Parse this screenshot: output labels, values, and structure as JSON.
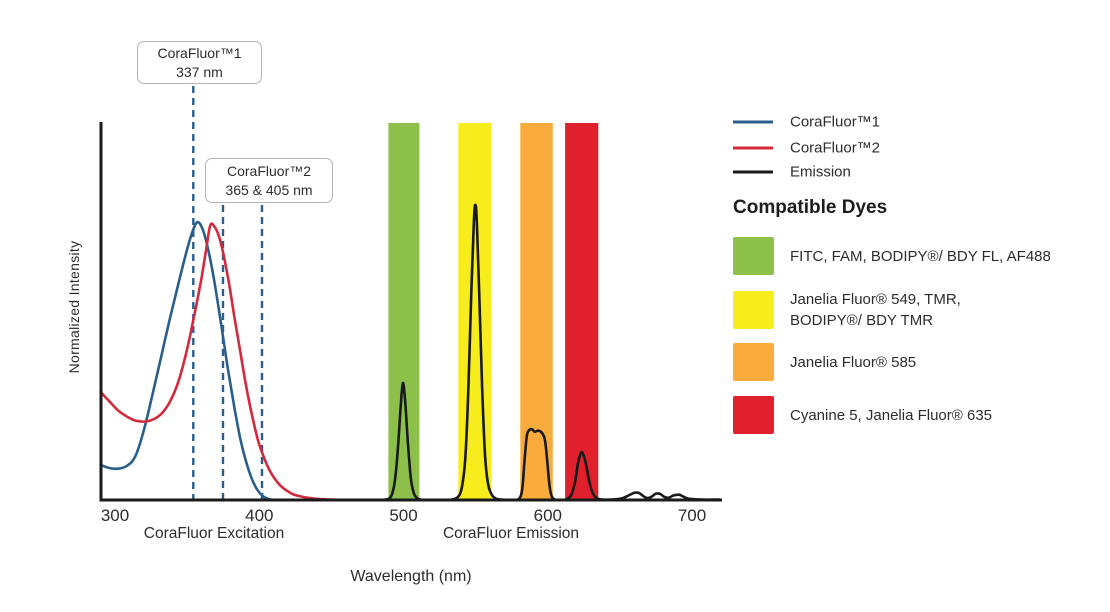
{
  "colors": {
    "blue": "#2A5F8C",
    "red": "#D4293C",
    "black": "#1A1A1A",
    "band_green": "#8CC04B",
    "band_yellow": "#F8ED1C",
    "band_orange": "#F9AC3C",
    "band_red": "#E1202D",
    "text": "#2D2D2D",
    "box_border": "#B3B3B6"
  },
  "chart_data": {
    "type": "line",
    "title": "",
    "xlabel": "Wavelength (nm)",
    "ylabel": "Normalized Intensity",
    "x_ticks": [
      300,
      400,
      500,
      600,
      700
    ],
    "x_range_nm": [
      290,
      719
    ],
    "y_range": [
      0,
      1
    ],
    "grid": false,
    "legend_position": "right",
    "axis_section_labels": [
      {
        "label": "CoraFluor Excitation"
      },
      {
        "label": "CoraFluor Emission"
      }
    ],
    "annotations": [
      {
        "title": "CoraFluor™1",
        "subtitle": "337 nm",
        "marker_lines_nm": [
          354.3
        ]
      },
      {
        "title": "CoraFluor™2",
        "subtitle": "365 & 405 nm",
        "marker_lines_nm": [
          374.9,
          401.9
        ]
      }
    ],
    "bands": [
      {
        "name": "green",
        "from_nm": 489.5,
        "to_nm": 511,
        "color_key": "band_green"
      },
      {
        "name": "yellow",
        "from_nm": 538,
        "to_nm": 561,
        "color_key": "band_yellow"
      },
      {
        "name": "orange",
        "from_nm": 581,
        "to_nm": 603.5,
        "color_key": "band_orange"
      },
      {
        "name": "red",
        "from_nm": 612,
        "to_nm": 635,
        "color_key": "band_red"
      }
    ],
    "series": [
      {
        "name": "CoraFluor™1",
        "color_key": "blue",
        "points": [
          [
            290,
            0.093
          ],
          [
            296,
            0.085
          ],
          [
            302,
            0.083
          ],
          [
            308,
            0.09
          ],
          [
            314,
            0.115
          ],
          [
            320,
            0.185
          ],
          [
            326,
            0.28
          ],
          [
            332,
            0.38
          ],
          [
            338,
            0.48
          ],
          [
            344,
            0.575
          ],
          [
            350,
            0.665
          ],
          [
            354,
            0.715
          ],
          [
            357,
            0.737
          ],
          [
            360,
            0.725
          ],
          [
            363,
            0.69
          ],
          [
            367,
            0.62
          ],
          [
            371,
            0.53
          ],
          [
            375,
            0.43
          ],
          [
            379,
            0.33
          ],
          [
            383,
            0.24
          ],
          [
            387,
            0.16
          ],
          [
            391,
            0.1
          ],
          [
            395,
            0.055
          ],
          [
            399,
            0.025
          ],
          [
            403,
            0.009
          ],
          [
            407,
            0.002
          ],
          [
            411,
            0
          ]
        ]
      },
      {
        "name": "CoraFluor™2",
        "color_key": "red",
        "points": [
          [
            290,
            0.287
          ],
          [
            296,
            0.262
          ],
          [
            302,
            0.238
          ],
          [
            308,
            0.222
          ],
          [
            314,
            0.211
          ],
          [
            320,
            0.208
          ],
          [
            326,
            0.213
          ],
          [
            332,
            0.228
          ],
          [
            338,
            0.26
          ],
          [
            344,
            0.315
          ],
          [
            350,
            0.4
          ],
          [
            356,
            0.51
          ],
          [
            360,
            0.59
          ],
          [
            363,
            0.66
          ],
          [
            366,
            0.728
          ],
          [
            369,
            0.725
          ],
          [
            372,
            0.7
          ],
          [
            375,
            0.655
          ],
          [
            379,
            0.575
          ],
          [
            383,
            0.48
          ],
          [
            387,
            0.39
          ],
          [
            391,
            0.3
          ],
          [
            395,
            0.225
          ],
          [
            399,
            0.16
          ],
          [
            403,
            0.115
          ],
          [
            407,
            0.08
          ],
          [
            411,
            0.055
          ],
          [
            415,
            0.037
          ],
          [
            419,
            0.025
          ],
          [
            423,
            0.016
          ],
          [
            427,
            0.011
          ],
          [
            432,
            0.007
          ],
          [
            438,
            0.004
          ],
          [
            444,
            0.002
          ],
          [
            450,
            0.001
          ],
          [
            457,
            0
          ]
        ]
      },
      {
        "name": "Emission",
        "color_key": "black",
        "points": [
          [
            440,
            0
          ],
          [
            455,
            0
          ],
          [
            470,
            0
          ],
          [
            482,
            0
          ],
          [
            487,
            0.001
          ],
          [
            490,
            0.004
          ],
          [
            492,
            0.015
          ],
          [
            494,
            0.05
          ],
          [
            496,
            0.13
          ],
          [
            498,
            0.245
          ],
          [
            499.5,
            0.31
          ],
          [
            501,
            0.27
          ],
          [
            503,
            0.155
          ],
          [
            505,
            0.06
          ],
          [
            507,
            0.02
          ],
          [
            509,
            0.006
          ],
          [
            512,
            0.001
          ],
          [
            517,
            0
          ],
          [
            524,
            0
          ],
          [
            531,
            0
          ],
          [
            536,
            0.004
          ],
          [
            539,
            0.015
          ],
          [
            541,
            0.045
          ],
          [
            543,
            0.12
          ],
          [
            545,
            0.3
          ],
          [
            547,
            0.55
          ],
          [
            548.8,
            0.74
          ],
          [
            549.8,
            0.783
          ],
          [
            550.8,
            0.74
          ],
          [
            552.5,
            0.55
          ],
          [
            554.5,
            0.3
          ],
          [
            556.5,
            0.12
          ],
          [
            558.5,
            0.045
          ],
          [
            561,
            0.015
          ],
          [
            564,
            0.004
          ],
          [
            568,
            0.001
          ],
          [
            573,
            0
          ],
          [
            578,
            0
          ],
          [
            581,
            0.008
          ],
          [
            582.5,
            0.035
          ],
          [
            584,
            0.11
          ],
          [
            585.5,
            0.17
          ],
          [
            587,
            0.185
          ],
          [
            589,
            0.188
          ],
          [
            591,
            0.181
          ],
          [
            593.5,
            0.184
          ],
          [
            596,
            0.178
          ],
          [
            598,
            0.16
          ],
          [
            599.5,
            0.11
          ],
          [
            601,
            0.045
          ],
          [
            602.5,
            0.012
          ],
          [
            604.5,
            0.002
          ],
          [
            607.5,
            0
          ],
          [
            611,
            0
          ],
          [
            614,
            0.004
          ],
          [
            616.5,
            0.015
          ],
          [
            619,
            0.05
          ],
          [
            621,
            0.098
          ],
          [
            623,
            0.125
          ],
          [
            624.5,
            0.122
          ],
          [
            626.5,
            0.095
          ],
          [
            628.5,
            0.055
          ],
          [
            630.5,
            0.025
          ],
          [
            632.5,
            0.01
          ],
          [
            635,
            0.003
          ],
          [
            638,
            0.001
          ],
          [
            643,
            0.001
          ],
          [
            648,
            0.002
          ],
          [
            652,
            0.005
          ],
          [
            656,
            0.012
          ],
          [
            660,
            0.019
          ],
          [
            663,
            0.019
          ],
          [
            666,
            0.011
          ],
          [
            669,
            0.005
          ],
          [
            672,
            0.009
          ],
          [
            675,
            0.017
          ],
          [
            678,
            0.016
          ],
          [
            681,
            0.008
          ],
          [
            684,
            0.006
          ],
          [
            687,
            0.012
          ],
          [
            691,
            0.014
          ],
          [
            694,
            0.009
          ],
          [
            697,
            0.004
          ],
          [
            701,
            0.002
          ],
          [
            707,
            0.001
          ],
          [
            714,
            0.001
          ],
          [
            719,
            0.001
          ]
        ]
      }
    ]
  },
  "legend": {
    "items": [
      {
        "label": "CoraFluor™1",
        "color_key": "blue"
      },
      {
        "label": "CoraFluor™2",
        "color_key": "red"
      },
      {
        "label": "Emission",
        "color_key": "black"
      }
    ]
  },
  "compatible_dyes": {
    "heading": "Compatible Dyes",
    "items": [
      {
        "color_key": "band_green",
        "lines": [
          "FITC, FAM, BODIPY®/ BDY FL, AF488"
        ]
      },
      {
        "color_key": "band_yellow",
        "lines": [
          "Janelia Fluor® 549, TMR,",
          "BODIPY®/ BDY TMR"
        ]
      },
      {
        "color_key": "band_orange",
        "lines": [
          "Janelia Fluor® 585"
        ]
      },
      {
        "color_key": "band_red",
        "lines": [
          "Cyanine 5, Janelia Fluor® 635"
        ]
      }
    ]
  }
}
